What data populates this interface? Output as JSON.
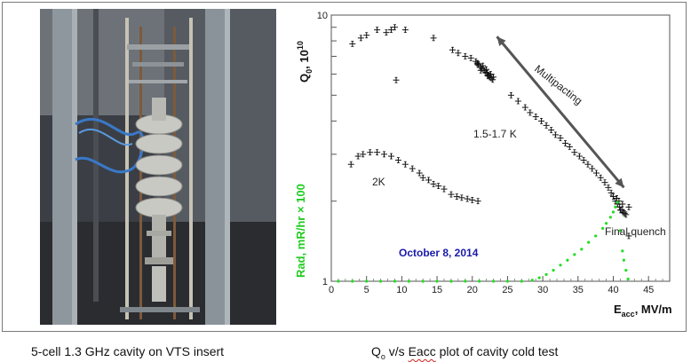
{
  "captions": {
    "left": "5-cell 1.3 GHz cavity on VTS insert",
    "right_q": "Q",
    "right_q_sub": "o",
    "right_mid": " v/s ",
    "right_eacc": "Eacc",
    "right_end": " plot of cavity cold test"
  },
  "photo": {
    "icon": "cavity-insert-photo"
  },
  "chart_data": {
    "type": "scatter",
    "y_scale": "log",
    "xlim": [
      0,
      48
    ],
    "ylim": [
      1,
      10
    ],
    "x_ticks": [
      "0",
      "5",
      "10",
      "15",
      "20",
      "25",
      "30",
      "35",
      "40",
      "45"
    ],
    "x_tick_values": [
      0,
      5,
      10,
      15,
      20,
      25,
      30,
      35,
      40,
      45
    ],
    "y_tick_top": "10",
    "y_tick_bottom": "1",
    "xlabel_main": "E",
    "xlabel_sub": "acc",
    "xlabel_rest": ", MV/m",
    "ylabel_main": "Q",
    "ylabel_sub": "0",
    "ylabel_rest": ", 10",
    "ylabel_sup": "10",
    "y2label": "Rad, mR/hr × 100",
    "annotations": {
      "multipacting": "Multipacting",
      "k15": "1.5-1.7 K",
      "k2": "2K",
      "quench": "Final quench",
      "date": "October 8, 2014"
    },
    "colors": {
      "series": "#111111",
      "rad": "#22dd22",
      "date": "#1a1aaa",
      "arrow": "#555555"
    },
    "series": [
      {
        "name": "1.5-1.7 K",
        "points": [
          [
            3.0,
            7.8
          ],
          [
            4.2,
            8.2
          ],
          [
            5.0,
            8.4
          ],
          [
            6.5,
            8.8
          ],
          [
            7.8,
            8.6
          ],
          [
            8.5,
            8.8
          ],
          [
            9.0,
            9.0
          ],
          [
            10.5,
            8.8
          ],
          [
            9.2,
            5.7
          ],
          [
            14.5,
            8.2
          ],
          [
            17.2,
            7.4
          ],
          [
            18.0,
            7.2
          ],
          [
            19.0,
            7.0
          ],
          [
            19.8,
            6.9
          ],
          [
            20.5,
            6.7
          ],
          [
            20.9,
            6.55
          ],
          [
            21.2,
            6.4
          ],
          [
            21.4,
            6.3
          ],
          [
            21.7,
            6.2
          ],
          [
            21.9,
            6.1
          ],
          [
            22.1,
            6.05
          ],
          [
            22.3,
            5.95
          ],
          [
            22.5,
            5.85
          ],
          [
            22.7,
            5.8
          ],
          [
            22.9,
            5.72
          ],
          [
            20.7,
            6.6
          ],
          [
            21.5,
            6.45
          ],
          [
            22.0,
            6.25
          ],
          [
            22.6,
            6.0
          ],
          [
            23.0,
            5.85
          ],
          [
            21.2,
            6.2
          ],
          [
            22.2,
            5.9
          ],
          [
            20.8,
            6.5
          ],
          [
            25.5,
            5.0
          ],
          [
            26.5,
            4.75
          ],
          [
            27.5,
            4.5
          ],
          [
            28.2,
            4.3
          ],
          [
            29.0,
            4.15
          ],
          [
            29.8,
            4.0
          ],
          [
            30.5,
            3.85
          ],
          [
            31.2,
            3.7
          ],
          [
            31.8,
            3.55
          ],
          [
            32.5,
            3.45
          ],
          [
            33.2,
            3.3
          ],
          [
            33.8,
            3.2
          ],
          [
            34.5,
            3.05
          ],
          [
            35.2,
            2.95
          ],
          [
            35.8,
            2.85
          ],
          [
            36.4,
            2.75
          ],
          [
            37.0,
            2.65
          ],
          [
            37.6,
            2.55
          ],
          [
            38.2,
            2.45
          ],
          [
            38.8,
            2.35
          ],
          [
            39.3,
            2.25
          ],
          [
            39.7,
            2.15
          ],
          [
            40.0,
            2.08
          ],
          [
            40.3,
            2.0
          ],
          [
            40.6,
            1.95
          ],
          [
            40.9,
            1.9
          ],
          [
            41.2,
            1.85
          ],
          [
            41.4,
            1.82
          ],
          [
            41.6,
            1.8
          ],
          [
            41.8,
            1.78
          ],
          [
            40.8,
            2.0
          ],
          [
            41.3,
            1.95
          ],
          [
            41.0,
            1.85
          ],
          [
            40.5,
            2.05
          ],
          [
            42.2,
            1.9
          ],
          [
            42.2,
            1.48
          ]
        ]
      },
      {
        "name": "2K",
        "points": [
          [
            2.8,
            2.75
          ],
          [
            3.8,
            2.95
          ],
          [
            4.5,
            3.0
          ],
          [
            5.5,
            3.05
          ],
          [
            6.5,
            3.05
          ],
          [
            7.5,
            3.0
          ],
          [
            8.5,
            2.95
          ],
          [
            9.5,
            2.85
          ],
          [
            10.5,
            2.75
          ],
          [
            11.5,
            2.65
          ],
          [
            12.5,
            2.55
          ],
          [
            13.0,
            2.45
          ],
          [
            13.8,
            2.4
          ],
          [
            14.5,
            2.32
          ],
          [
            15.2,
            2.28
          ],
          [
            16.0,
            2.22
          ],
          [
            17.0,
            2.12
          ],
          [
            17.8,
            2.08
          ],
          [
            18.5,
            2.06
          ],
          [
            19.3,
            2.04
          ],
          [
            20.0,
            2.02
          ],
          [
            20.8,
            2.0
          ]
        ]
      },
      {
        "name": "Rad, mR/hr × 100",
        "points": [
          [
            1,
            1.0
          ],
          [
            3,
            1.0
          ],
          [
            5,
            1.0
          ],
          [
            7,
            1.0
          ],
          [
            9,
            1.0
          ],
          [
            11,
            1.0
          ],
          [
            13,
            1.0
          ],
          [
            15,
            1.0
          ],
          [
            17,
            1.0
          ],
          [
            19,
            1.0
          ],
          [
            21,
            1.0
          ],
          [
            23,
            1.0
          ],
          [
            25,
            1.0
          ],
          [
            27,
            1.0
          ],
          [
            28.5,
            1.01
          ],
          [
            29.5,
            1.03
          ],
          [
            30.5,
            1.06
          ],
          [
            31.5,
            1.1
          ],
          [
            32.5,
            1.15
          ],
          [
            33.5,
            1.2
          ],
          [
            34.5,
            1.26
          ],
          [
            35.5,
            1.32
          ],
          [
            36.5,
            1.4
          ],
          [
            37.5,
            1.48
          ],
          [
            38.5,
            1.58
          ],
          [
            39.0,
            1.65
          ],
          [
            39.6,
            1.74
          ],
          [
            40.0,
            1.82
          ],
          [
            40.3,
            1.9
          ],
          [
            40.6,
            1.98
          ],
          [
            41.0,
            1.55
          ],
          [
            41.3,
            1.3
          ],
          [
            41.5,
            1.2
          ],
          [
            41.8,
            1.1
          ],
          [
            42.1,
            1.02
          ]
        ]
      }
    ]
  }
}
